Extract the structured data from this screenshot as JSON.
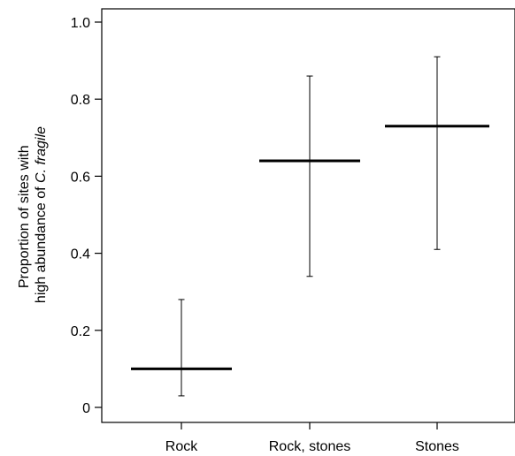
{
  "chart_data": {
    "type": "errorbar",
    "title": "",
    "xlabel": "",
    "ylabel_line1": "Proportion of sites with",
    "ylabel_line2_prefix": "high abundance of ",
    "ylabel_line2_italic": "C. fragile",
    "categories": [
      "Rock",
      "Rock, stones",
      "Stones"
    ],
    "values": [
      0.1,
      0.64,
      0.73
    ],
    "lower": [
      0.03,
      0.34,
      0.41
    ],
    "upper": [
      0.28,
      0.86,
      0.91
    ],
    "ylim": [
      0,
      1.0
    ],
    "yticks": [
      0,
      0.2,
      0.4,
      0.6,
      0.8,
      1.0
    ],
    "ytick_labels": [
      "0",
      "0.2",
      "0.4",
      "0.6",
      "0.8",
      "1.0"
    ],
    "grid": false,
    "legend": "none"
  }
}
